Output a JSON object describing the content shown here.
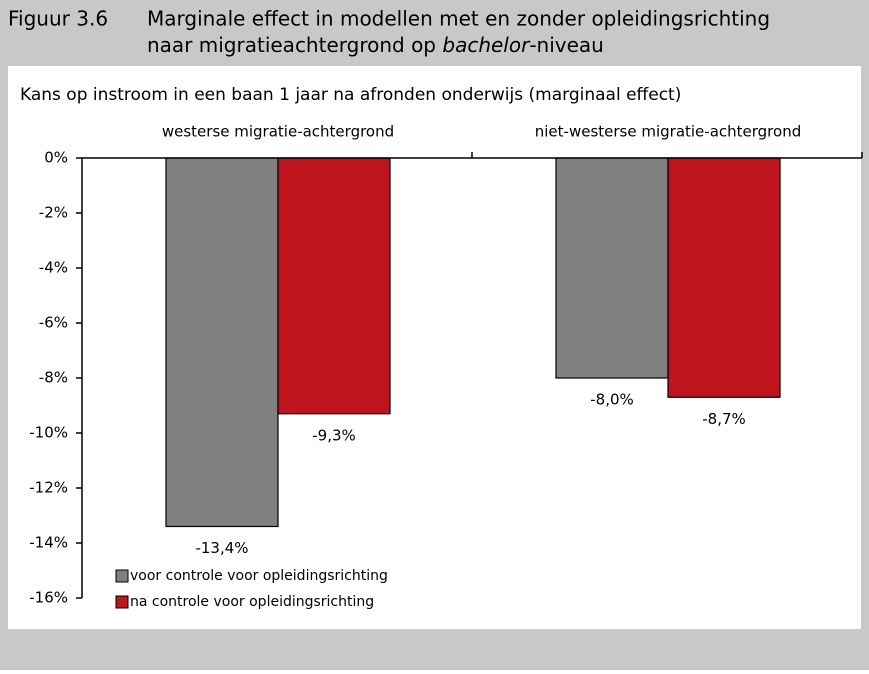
{
  "chart_data": {
    "type": "bar",
    "figure_label": "Figuur 3.6",
    "title_lines": [
      "Marginale effect in modellen met en zonder opleidingsrichting",
      [
        "naar migratieachtergrond op ",
        "bachelor",
        "-niveau"
      ]
    ],
    "subtitle": "Kans op instroom in een baan 1 jaar na afronden onderwijs (marginaal effect)",
    "categories": [
      "westerse migratie-achtergrond",
      "niet-westerse migratie-achtergrond"
    ],
    "series": [
      {
        "name": "voor controle voor opleidingsrichting",
        "color": "#808080",
        "values": [
          -13.4,
          -8.0
        ],
        "value_labels": [
          "-13,4%",
          "-8,0%"
        ]
      },
      {
        "name": "na controle voor opleidingsrichting",
        "color": "#c0141e",
        "values": [
          -9.3,
          -8.7
        ],
        "value_labels": [
          "-9,3%",
          "-8,7%"
        ]
      }
    ],
    "ylim": [
      -16,
      0
    ],
    "yticks": [
      {
        "value": 0,
        "label": "0%"
      },
      {
        "value": -2,
        "label": "-2%"
      },
      {
        "value": -4,
        "label": "-4%"
      },
      {
        "value": -6,
        "label": "-6%"
      },
      {
        "value": -8,
        "label": "-8%"
      },
      {
        "value": -10,
        "label": "-10%"
      },
      {
        "value": -12,
        "label": "-12%"
      },
      {
        "value": -14,
        "label": "-14%"
      },
      {
        "value": -16,
        "label": "-16%"
      }
    ],
    "legend": "bottom-left"
  }
}
